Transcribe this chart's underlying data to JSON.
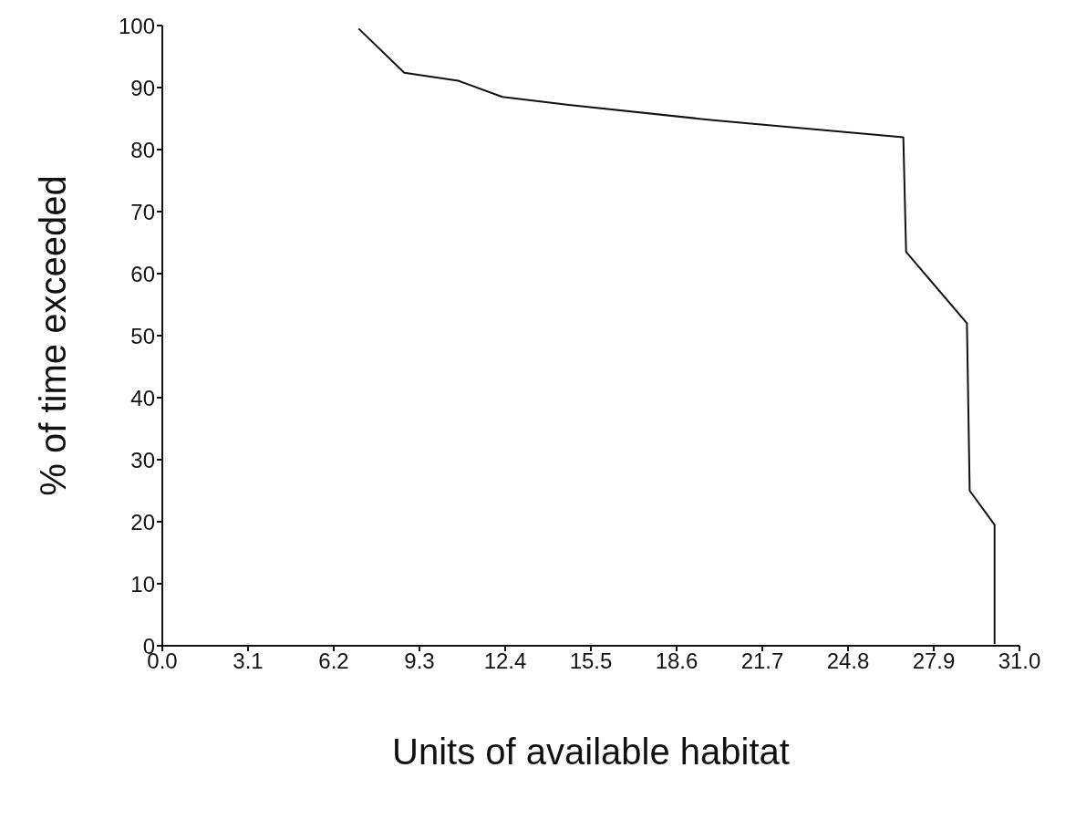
{
  "chart_data": {
    "type": "line",
    "xlabel": "Units of available habitat",
    "ylabel": "% of time exceeded",
    "x": [
      7.1,
      8.75,
      10.7,
      12.3,
      14.7,
      20.0,
      26.8,
      26.9,
      29.1,
      29.2,
      30.1,
      30.1
    ],
    "series": [
      {
        "color": "#111111",
        "values": [
          99.5,
          92.4,
          91.1,
          88.5,
          87.2,
          84.7,
          82.0,
          63.5,
          52.0,
          25.0,
          19.5,
          0.3
        ]
      }
    ],
    "xlim": [
      0,
      31
    ],
    "xticks": [
      {
        "value": 0,
        "label": "0.0"
      },
      3.1,
      6.2,
      9.3,
      12.4,
      15.5,
      18.6,
      21.7,
      24.8,
      27.9,
      {
        "value": 31,
        "label": "31.0"
      }
    ],
    "ylim": [
      0,
      100
    ],
    "yticks": [
      0,
      10,
      20,
      30,
      40,
      50,
      60,
      70,
      80,
      90,
      100
    ],
    "grid": false,
    "legend": false,
    "marker": "none",
    "line_style": "solid"
  }
}
